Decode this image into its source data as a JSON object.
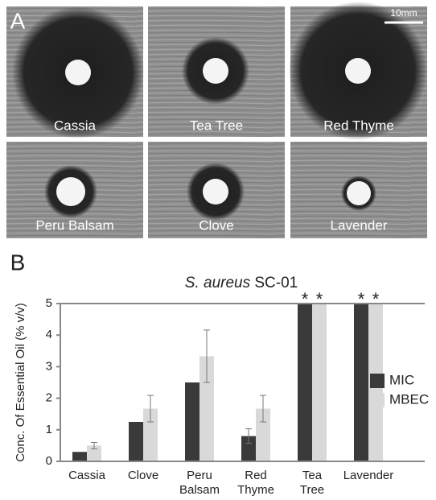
{
  "panel_a": {
    "label": "A",
    "scale_bar": "10mm",
    "images": [
      "Cassia",
      "Tea Tree",
      "Red Thyme",
      "Peru Balsam",
      "Clove",
      "Lavender"
    ]
  },
  "panel_b": {
    "label": "B"
  },
  "chart_data": {
    "type": "bar",
    "title": "S. aureus SC-01",
    "y_label": "Conc. Of Essential Oil (% v/v)",
    "categories": [
      "Cassia",
      "Clove",
      "Peru Balsam",
      "Red Thyme",
      "Tea Tree",
      "Lavender"
    ],
    "series": [
      {
        "name": "MIC",
        "color": "#3a3a3a",
        "values": [
          0.3,
          1.25,
          2.5,
          0.8,
          5,
          5
        ],
        "errors": [
          0,
          0,
          0,
          0.23,
          0,
          0
        ],
        "markers": [
          null,
          null,
          null,
          null,
          "*",
          "*"
        ]
      },
      {
        "name": "MBEC",
        "color": "#d9d9d9",
        "values": [
          0.5,
          1.67,
          3.33,
          1.67,
          5,
          5
        ],
        "errors": [
          0.1,
          0.42,
          0.83,
          0.42,
          0,
          0
        ],
        "markers": [
          null,
          null,
          null,
          null,
          "*",
          "*"
        ]
      }
    ],
    "ylim": [
      0,
      5
    ],
    "yticks": [
      0,
      1,
      2,
      3,
      4,
      5
    ],
    "grid": false,
    "legend": "right"
  }
}
